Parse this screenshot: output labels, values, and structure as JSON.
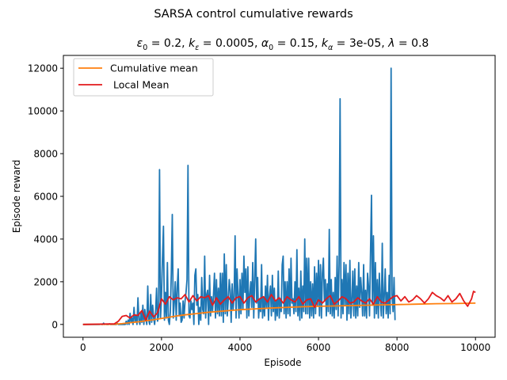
{
  "chart_data": {
    "type": "line",
    "suptitle": "SARSA control cumulative rewards",
    "title": {
      "eps_symbol": "ε",
      "eps_sub": "0",
      "eps_val": " = 0.2, ",
      "k_symbol": "k",
      "k_eps_sub": "ε",
      "k_eps_val": " = 0.0005, ",
      "alpha_symbol": "α",
      "alpha_sub": "0",
      "alpha_val": " = 0.15, ",
      "k_alpha_sub": "α",
      "k_alpha_val": " = 3e-05, ",
      "lambda_symbol": "λ",
      "lambda_val": " = 0.8"
    },
    "xlabel": "Episode",
    "ylabel": "Episode reward",
    "xlim": [
      -500,
      10500
    ],
    "ylim": [
      -600,
      12600
    ],
    "xticks": [
      0,
      2000,
      4000,
      6000,
      8000,
      10000
    ],
    "yticks": [
      0,
      2000,
      4000,
      6000,
      8000,
      10000,
      12000
    ],
    "grid": false,
    "legend_position": "top-left",
    "series": [
      {
        "name": "Episode reward",
        "color": "#1f77b4",
        "in_legend": false,
        "sample_step": 25,
        "x_start": 0,
        "values": [
          0,
          0,
          0,
          0,
          0,
          0,
          0,
          0,
          0,
          0,
          0,
          0,
          0,
          0,
          0,
          0,
          0,
          0,
          10,
          0,
          0,
          60,
          0,
          20,
          0,
          0,
          0,
          30,
          0,
          0,
          0,
          0,
          0,
          0,
          0,
          50,
          0,
          0,
          0,
          0,
          0,
          0,
          0,
          0,
          150,
          0,
          200,
          0,
          520,
          100,
          300,
          0,
          800,
          150,
          400,
          0,
          1250,
          200,
          0,
          600,
          100,
          900,
          0,
          700,
          300,
          0,
          1800,
          200,
          0,
          1400,
          100,
          900,
          300,
          0,
          600,
          1700,
          150,
          400,
          7250,
          300,
          1300,
          3100,
          4600,
          200,
          1500,
          300,
          2900,
          200,
          0,
          600,
          2400,
          5150,
          300,
          1000,
          2000,
          200,
          1700,
          2600,
          400,
          1000,
          100,
          200,
          1100,
          300,
          1100,
          1500,
          2100,
          7450,
          400,
          300,
          1100,
          700,
          1000,
          0,
          2300,
          2600,
          900,
          1400,
          0,
          800,
          200,
          2200,
          700,
          500,
          3200,
          300,
          1400,
          1600,
          0,
          2300,
          400,
          1300,
          600,
          1400,
          2400,
          300,
          2100,
          500,
          1700,
          400,
          2400,
          400,
          2400,
          100,
          3300,
          500,
          2800,
          400,
          1100,
          2100,
          1600,
          100,
          1900,
          700,
          1300,
          4150,
          300,
          2600,
          1400,
          300,
          2100,
          500,
          2400,
          700,
          3200,
          1500,
          2600,
          300,
          2700,
          400,
          1400,
          2000,
          800,
          2900,
          300,
          2100,
          4000,
          1000,
          2200,
          300,
          1200,
          600,
          2800,
          300,
          1300,
          400,
          1800,
          800,
          2300,
          200,
          1300,
          1800,
          400,
          2300,
          600,
          1700,
          200,
          1100,
          400,
          2500,
          300,
          1200,
          600,
          2800,
          3200,
          500,
          2000,
          300,
          2000,
          500,
          2600,
          400,
          3100,
          1000,
          1200,
          500,
          2000,
          600,
          3500,
          400,
          1700,
          200,
          2500,
          300,
          1800,
          600,
          4000,
          500,
          3100,
          500,
          3100,
          300,
          2000,
          400,
          1900,
          300,
          2700,
          500,
          2400,
          900,
          3000,
          400,
          2800,
          300,
          2400,
          3100,
          1100,
          2100,
          400,
          1900,
          600,
          4450,
          500,
          2100,
          400,
          1500,
          300,
          2200,
          700,
          3200,
          400,
          2800,
          10570,
          300,
          2100,
          500,
          2900,
          900,
          2800,
          200,
          2400,
          500,
          3000,
          300,
          1100,
          2500,
          400,
          2600,
          300,
          1800,
          400,
          2900,
          800,
          2200,
          1500,
          400,
          2800,
          400,
          1600,
          300,
          2400,
          1800,
          400,
          3300,
          6050,
          900,
          4150,
          300,
          2900,
          500,
          2100,
          300,
          2400,
          1200,
          400,
          3800,
          300,
          1300,
          2600,
          500,
          1500,
          300,
          2300,
          500,
          12000,
          1400,
          600,
          2200,
          200
        ]
      },
      {
        "name": "Cumulative mean",
        "color": "#ff7f0e",
        "in_legend": true,
        "x": [
          0,
          800,
          1000,
          1200,
          1400,
          1600,
          1800,
          2000,
          2200,
          2400,
          2600,
          2800,
          3000,
          3200,
          3400,
          3600,
          3800,
          4000,
          4400,
          4800,
          5200,
          5600,
          6000,
          6500,
          7000,
          7500,
          8000,
          8500,
          9000,
          9500,
          10000
        ],
        "y": [
          0,
          10,
          40,
          80,
          120,
          170,
          220,
          280,
          340,
          400,
          450,
          490,
          530,
          570,
          600,
          630,
          660,
          690,
          730,
          770,
          800,
          830,
          850,
          870,
          890,
          910,
          930,
          950,
          970,
          980,
          1000
        ]
      },
      {
        "name": " Local Mean",
        "color": "#e31a1c",
        "in_legend": true,
        "x": [
          0,
          800,
          900,
          1000,
          1100,
          1200,
          1300,
          1400,
          1500,
          1600,
          1700,
          1800,
          1900,
          2000,
          2100,
          2200,
          2300,
          2400,
          2500,
          2600,
          2700,
          2800,
          2900,
          3000,
          3100,
          3200,
          3300,
          3400,
          3500,
          3600,
          3700,
          3800,
          3900,
          4000,
          4100,
          4200,
          4300,
          4400,
          4500,
          4600,
          4700,
          4800,
          4900,
          5000,
          5100,
          5200,
          5300,
          5400,
          5500,
          5600,
          5700,
          5800,
          5900,
          6000,
          6100,
          6200,
          6300,
          6400,
          6500,
          6600,
          6700,
          6800,
          6900,
          7000,
          7100,
          7200,
          7300,
          7400,
          7500,
          7600,
          7700,
          7800,
          7900,
          8000,
          8100,
          8200,
          8300,
          8400,
          8500,
          8600,
          8700,
          8800,
          8900,
          9000,
          9100,
          9200,
          9300,
          9400,
          9500,
          9600,
          9700,
          9800,
          9900,
          9950,
          10000
        ],
        "y": [
          0,
          30,
          150,
          380,
          420,
          300,
          450,
          420,
          650,
          200,
          620,
          350,
          550,
          1200,
          950,
          1300,
          1150,
          1250,
          1200,
          1400,
          1050,
          1350,
          1100,
          1300,
          1250,
          1350,
          900,
          1250,
          950,
          1150,
          1300,
          1000,
          1250,
          1300,
          1000,
          1250,
          1350,
          1050,
          1200,
          1300,
          1050,
          1400,
          1100,
          1250,
          1000,
          1300,
          1150,
          1050,
          1300,
          950,
          1150,
          1200,
          800,
          1150,
          1000,
          1200,
          1350,
          950,
          1100,
          1300,
          1200,
          1000,
          1050,
          1250,
          1100,
          1000,
          1200,
          950,
          1300,
          1050,
          1000,
          1150,
          1300,
          1350,
          1100,
          1300,
          1050,
          1150,
          1350,
          1200,
          1000,
          1200,
          1500,
          1350,
          1250,
          1100,
          1350,
          1050,
          1200,
          1450,
          1100,
          850,
          1200,
          1550,
          1500
        ]
      }
    ]
  }
}
